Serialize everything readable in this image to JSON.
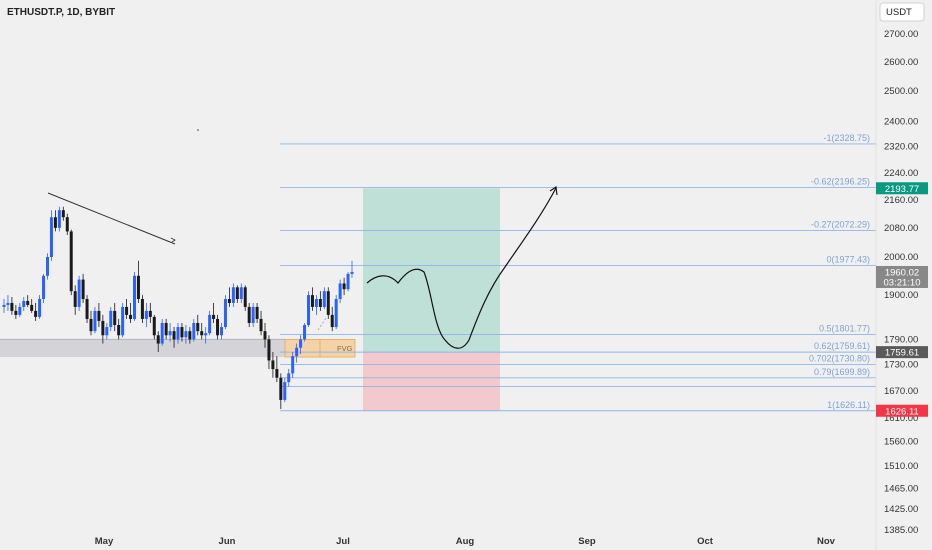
{
  "header": {
    "symbol": "ETHUSDT.P, 1D, BYBIT",
    "currency": "USDT"
  },
  "colors": {
    "background": "#f0f0f0",
    "up": "#2962ff",
    "down": "#1a1a1a",
    "fib_line": "#90b4e8",
    "fib_text": "#7ea3d6",
    "profit_zone": "#bfe0d6",
    "loss_zone": "#f2c9cc",
    "target_badge": "#089981",
    "stop_badge": "#f23645",
    "price_badge": "#888888",
    "fvg_zone": "#f5d3a6",
    "support_zone": "#d3d3d8",
    "axis_text": "#333333"
  },
  "chart_data": {
    "type": "candlestick",
    "y_axis": {
      "scale": "log",
      "ticks": [
        "2700.00",
        "2600.00",
        "2500.00",
        "2400.00",
        "2320.00",
        "2240.00",
        "2160.00",
        "2080.00",
        "2000.00",
        "1900.00",
        "1790.00",
        "1730.00",
        "1670.00",
        "1610.00",
        "1560.00",
        "1510.00",
        "1465.00",
        "1425.00",
        "1385.00"
      ],
      "range": [
        1365,
        2780
      ]
    },
    "x_axis": {
      "labels": [
        "May",
        "Jun",
        "Jul",
        "Aug",
        "Sep",
        "Oct",
        "Nov"
      ]
    },
    "fib_levels": [
      {
        "label": "-1(2328.75)",
        "value": 2328.75
      },
      {
        "label": "-0.62(2196.25)",
        "value": 2196.25
      },
      {
        "label": "-0.27(2072.29)",
        "value": 2072.29
      },
      {
        "label": "0(1977.43)",
        "value": 1977.43
      },
      {
        "label": "0.5(1801.77)",
        "value": 1801.77
      },
      {
        "label": "0.62(1759.61)",
        "value": 1759.61
      },
      {
        "label": "0.702(1730.80)",
        "value": 1730.8
      },
      {
        "label": "0.79(1699.89)",
        "value": 1699.89
      },
      {
        "label": "",
        "value": 1680
      },
      {
        "label": "1(1626.11)",
        "value": 1626.11
      }
    ],
    "price_badges": {
      "target": "2193.77",
      "current": "1960.02",
      "countdown": "03:21:10",
      "entry": "1759.61",
      "stop": "1626.11"
    },
    "position": {
      "entry": 1759.61,
      "target": 2193.77,
      "stop": 1626.11
    },
    "fvg_label": "FVG",
    "grid": false,
    "candles": [
      [
        1870,
        1890,
        1855,
        1875
      ],
      [
        1875,
        1900,
        1860,
        1880
      ],
      [
        1880,
        1895,
        1850,
        1860
      ],
      [
        1860,
        1875,
        1840,
        1850
      ],
      [
        1850,
        1880,
        1845,
        1870
      ],
      [
        1870,
        1895,
        1860,
        1885
      ],
      [
        1885,
        1900,
        1870,
        1875
      ],
      [
        1875,
        1890,
        1855,
        1860
      ],
      [
        1860,
        1880,
        1835,
        1845
      ],
      [
        1845,
        1900,
        1840,
        1890
      ],
      [
        1890,
        1955,
        1880,
        1950
      ],
      [
        1950,
        2010,
        1940,
        2000
      ],
      [
        2000,
        2130,
        1990,
        2110
      ],
      [
        2110,
        2130,
        2070,
        2080
      ],
      [
        2080,
        2140,
        2070,
        2130
      ],
      [
        2130,
        2140,
        2100,
        2110
      ],
      [
        2110,
        2120,
        2060,
        2070
      ],
      [
        2070,
        2075,
        1900,
        1910
      ],
      [
        1910,
        1925,
        1850,
        1870
      ],
      [
        1870,
        1950,
        1860,
        1940
      ],
      [
        1940,
        1955,
        1880,
        1890
      ],
      [
        1890,
        1900,
        1830,
        1840
      ],
      [
        1840,
        1860,
        1800,
        1810
      ],
      [
        1810,
        1870,
        1805,
        1860
      ],
      [
        1860,
        1880,
        1820,
        1835
      ],
      [
        1835,
        1850,
        1780,
        1800
      ],
      [
        1800,
        1830,
        1790,
        1820
      ],
      [
        1820,
        1870,
        1810,
        1860
      ],
      [
        1860,
        1880,
        1810,
        1825
      ],
      [
        1825,
        1840,
        1790,
        1800
      ],
      [
        1800,
        1880,
        1795,
        1870
      ],
      [
        1870,
        1890,
        1840,
        1850
      ],
      [
        1850,
        1880,
        1830,
        1840
      ],
      [
        1840,
        1960,
        1835,
        1950
      ],
      [
        1950,
        1990,
        1880,
        1890
      ],
      [
        1890,
        1900,
        1830,
        1840
      ],
      [
        1840,
        1880,
        1820,
        1860
      ],
      [
        1860,
        1880,
        1830,
        1845
      ],
      [
        1845,
        1850,
        1790,
        1800
      ],
      [
        1800,
        1810,
        1760,
        1780
      ],
      [
        1780,
        1840,
        1775,
        1830
      ],
      [
        1830,
        1840,
        1790,
        1800
      ],
      [
        1800,
        1830,
        1785,
        1810
      ],
      [
        1810,
        1820,
        1770,
        1790
      ],
      [
        1790,
        1830,
        1780,
        1820
      ],
      [
        1820,
        1830,
        1785,
        1795
      ],
      [
        1795,
        1825,
        1780,
        1810
      ],
      [
        1810,
        1820,
        1780,
        1790
      ],
      [
        1790,
        1840,
        1785,
        1830
      ],
      [
        1830,
        1850,
        1800,
        1810
      ],
      [
        1810,
        1830,
        1790,
        1800
      ],
      [
        1800,
        1820,
        1780,
        1805
      ],
      [
        1805,
        1860,
        1800,
        1850
      ],
      [
        1850,
        1880,
        1830,
        1840
      ],
      [
        1840,
        1850,
        1790,
        1800
      ],
      [
        1800,
        1830,
        1790,
        1820
      ],
      [
        1820,
        1900,
        1815,
        1890
      ],
      [
        1890,
        1920,
        1870,
        1880
      ],
      [
        1880,
        1930,
        1870,
        1920
      ],
      [
        1920,
        1925,
        1880,
        1890
      ],
      [
        1890,
        1930,
        1880,
        1920
      ],
      [
        1920,
        1925,
        1860,
        1870
      ],
      [
        1870,
        1880,
        1820,
        1830
      ],
      [
        1830,
        1880,
        1820,
        1870
      ],
      [
        1870,
        1880,
        1830,
        1840
      ],
      [
        1840,
        1860,
        1800,
        1810
      ],
      [
        1810,
        1830,
        1770,
        1790
      ],
      [
        1790,
        1800,
        1720,
        1740
      ],
      [
        1740,
        1760,
        1700,
        1720
      ],
      [
        1720,
        1750,
        1690,
        1700
      ],
      [
        1700,
        1710,
        1630,
        1650
      ],
      [
        1650,
        1700,
        1645,
        1690
      ],
      [
        1690,
        1720,
        1680,
        1710
      ],
      [
        1710,
        1760,
        1700,
        1750
      ],
      [
        1750,
        1780,
        1735,
        1770
      ],
      [
        1770,
        1800,
        1755,
        1790
      ],
      [
        1790,
        1830,
        1785,
        1825
      ],
      [
        1825,
        1910,
        1820,
        1900
      ],
      [
        1900,
        1920,
        1860,
        1870
      ],
      [
        1870,
        1900,
        1850,
        1890
      ],
      [
        1890,
        1910,
        1860,
        1870
      ],
      [
        1870,
        1920,
        1865,
        1910
      ],
      [
        1910,
        1920,
        1840,
        1850
      ],
      [
        1850,
        1870,
        1810,
        1820
      ],
      [
        1820,
        1900,
        1815,
        1890
      ],
      [
        1890,
        1940,
        1880,
        1930
      ],
      [
        1930,
        1945,
        1900,
        1915
      ],
      [
        1915,
        1960,
        1910,
        1955
      ],
      [
        1955,
        1990,
        1945,
        1960
      ]
    ]
  }
}
